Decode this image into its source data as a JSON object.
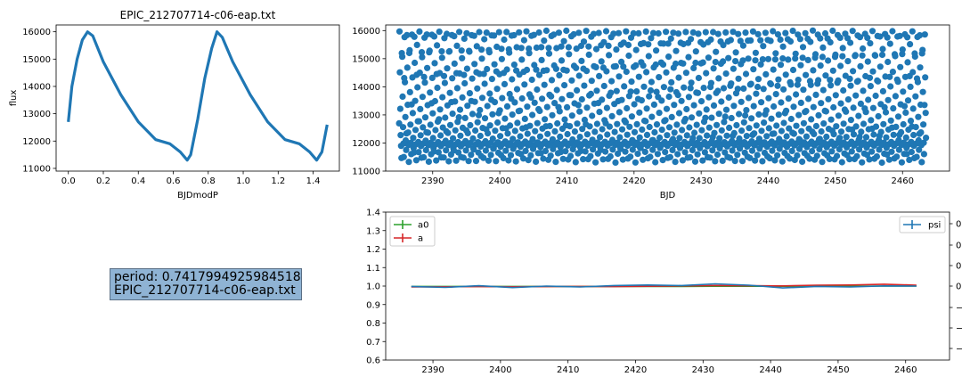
{
  "colors": {
    "series_blue": "#1f77b4",
    "a0_green": "#2ca02c",
    "a_red": "#d62728",
    "info_box_bg": "#8fb3d4"
  },
  "info_box": {
    "line1": "period: 0.7417994925984518",
    "line2": "EPIC_212707714-c06-eap.txt"
  },
  "chart_data": [
    {
      "id": "phased-lightcurve",
      "type": "line",
      "title": "EPIC_212707714-c06-eap.txt",
      "xlabel": "BJDmodP",
      "ylabel": "flux",
      "xlim": [
        -0.07,
        1.55
      ],
      "ylim": [
        10900,
        16250
      ],
      "xticks": [
        0.0,
        0.2,
        0.4,
        0.6,
        0.8,
        1.0,
        1.2,
        1.4
      ],
      "xtick_labels": [
        "0.0",
        "0.2",
        "0.4",
        "0.6",
        "0.8",
        "1.0",
        "1.2",
        "1.4"
      ],
      "yticks": [
        11000,
        12000,
        13000,
        14000,
        15000,
        16000
      ],
      "ytick_labels": [
        "11000",
        "12000",
        "13000",
        "14000",
        "15000",
        "16000"
      ],
      "x": [
        0.0,
        0.02,
        0.05,
        0.08,
        0.11,
        0.14,
        0.2,
        0.3,
        0.4,
        0.5,
        0.58,
        0.64,
        0.68,
        0.7,
        0.74,
        0.78,
        0.82,
        0.85,
        0.88,
        0.94,
        1.04,
        1.14,
        1.24,
        1.32,
        1.38,
        1.42,
        1.45,
        1.48
      ],
      "y": [
        12700,
        14000,
        15000,
        15700,
        16000,
        15850,
        14900,
        13700,
        12700,
        12050,
        11900,
        11600,
        11300,
        11500,
        12800,
        14300,
        15400,
        16000,
        15800,
        14900,
        13700,
        12700,
        12050,
        11900,
        11600,
        11300,
        11600,
        12600
      ]
    },
    {
      "id": "raw-lightcurve",
      "type": "scatter",
      "xlabel": "BJD",
      "ylabel": "",
      "xlim": [
        2383.0,
        2467.0
      ],
      "ylim": [
        11000,
        16200
      ],
      "xticks": [
        2390,
        2400,
        2410,
        2420,
        2430,
        2440,
        2450,
        2460
      ],
      "xtick_labels": [
        "2390",
        "2400",
        "2410",
        "2420",
        "2430",
        "2440",
        "2450",
        "2460"
      ],
      "yticks": [
        11000,
        12000,
        13000,
        14000,
        15000,
        16000
      ],
      "ytick_labels": [
        "11000",
        "12000",
        "13000",
        "14000",
        "15000",
        "16000"
      ],
      "x_range": [
        2385.0,
        2463.5
      ],
      "y_range": [
        11200,
        16000
      ],
      "period": 0.7417994925984518,
      "reference_series": "phased-lightcurve"
    },
    {
      "id": "fit-parameters",
      "type": "line",
      "xlabel": "",
      "ylabel": "",
      "xlim": [
        2383.0,
        2466.5
      ],
      "ylim": [
        0.6,
        1.4
      ],
      "xticks": [
        2390,
        2400,
        2410,
        2420,
        2430,
        2440,
        2450,
        2460
      ],
      "xtick_labels": [
        "2390",
        "2400",
        "2410",
        "2420",
        "2430",
        "2440",
        "2450",
        "2460"
      ],
      "yticks": [
        0.6,
        0.7,
        0.8,
        0.9,
        1.0,
        1.1,
        1.2,
        1.3,
        1.4
      ],
      "ytick_labels": [
        "0.6",
        "0.7",
        "0.8",
        "0.9",
        "1.0",
        "1.1",
        "1.2",
        "1.3",
        "1.4"
      ],
      "right_ytick_labels": [
        "0.",
        "0.",
        "0.",
        "0.",
        "−",
        "−",
        "−"
      ],
      "legend_left": "upper-left",
      "legend_right": "upper-right",
      "x": [
        2386.8,
        2391.8,
        2396.8,
        2401.8,
        2406.8,
        2411.8,
        2416.8,
        2421.8,
        2426.8,
        2431.8,
        2436.8,
        2441.8,
        2446.8,
        2451.8,
        2456.8,
        2461.6
      ],
      "series": [
        {
          "name": "a0",
          "color": "#2ca02c",
          "values": [
            0.998,
            0.998,
            0.998,
            0.998,
            0.998,
            0.998,
            0.998,
            0.998,
            0.998,
            0.999,
            0.999,
            0.999,
            1.0,
            1.0,
            1.0,
            1.0
          ]
        },
        {
          "name": "a",
          "color": "#d62728",
          "values": [
            0.995,
            0.996,
            0.997,
            0.996,
            0.997,
            0.998,
            0.997,
            0.999,
            1.001,
            1.003,
            1.002,
            1.001,
            1.005,
            1.006,
            1.01,
            1.005
          ]
        },
        {
          "name": "psi",
          "color": "#1f77b4",
          "values": [
            0.998,
            0.993,
            1.002,
            0.992,
            1.0,
            0.995,
            1.003,
            1.006,
            1.003,
            1.012,
            1.005,
            0.99,
            0.998,
            0.995,
            1.001,
            1.0
          ]
        }
      ]
    }
  ]
}
